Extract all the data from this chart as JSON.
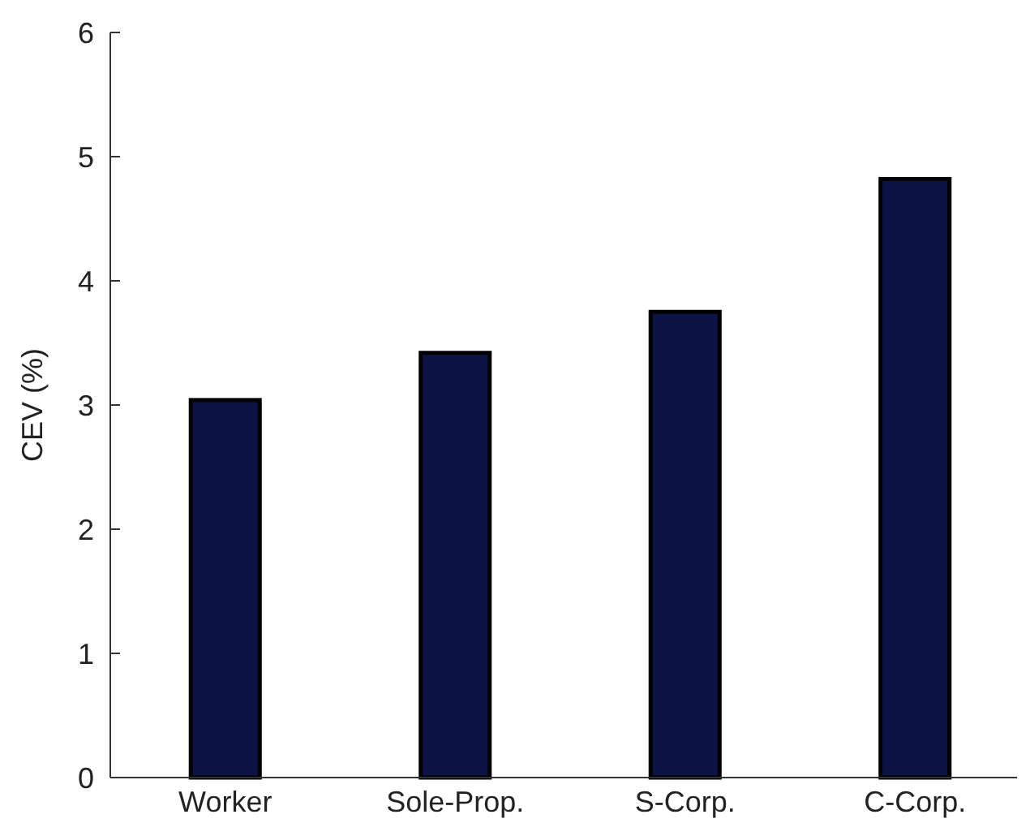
{
  "chart_data": {
    "type": "bar",
    "ylabel": "CEV (%)",
    "categories": [
      "Worker",
      "Sole-Prop.",
      "S-Corp.",
      "C-Corp."
    ],
    "values": [
      3.04,
      3.42,
      3.75,
      4.82
    ],
    "color": "#0d1445",
    "ylim": [
      0,
      6
    ],
    "yticks": [
      0,
      1,
      2,
      3,
      4,
      5,
      6
    ],
    "grid": false
  }
}
